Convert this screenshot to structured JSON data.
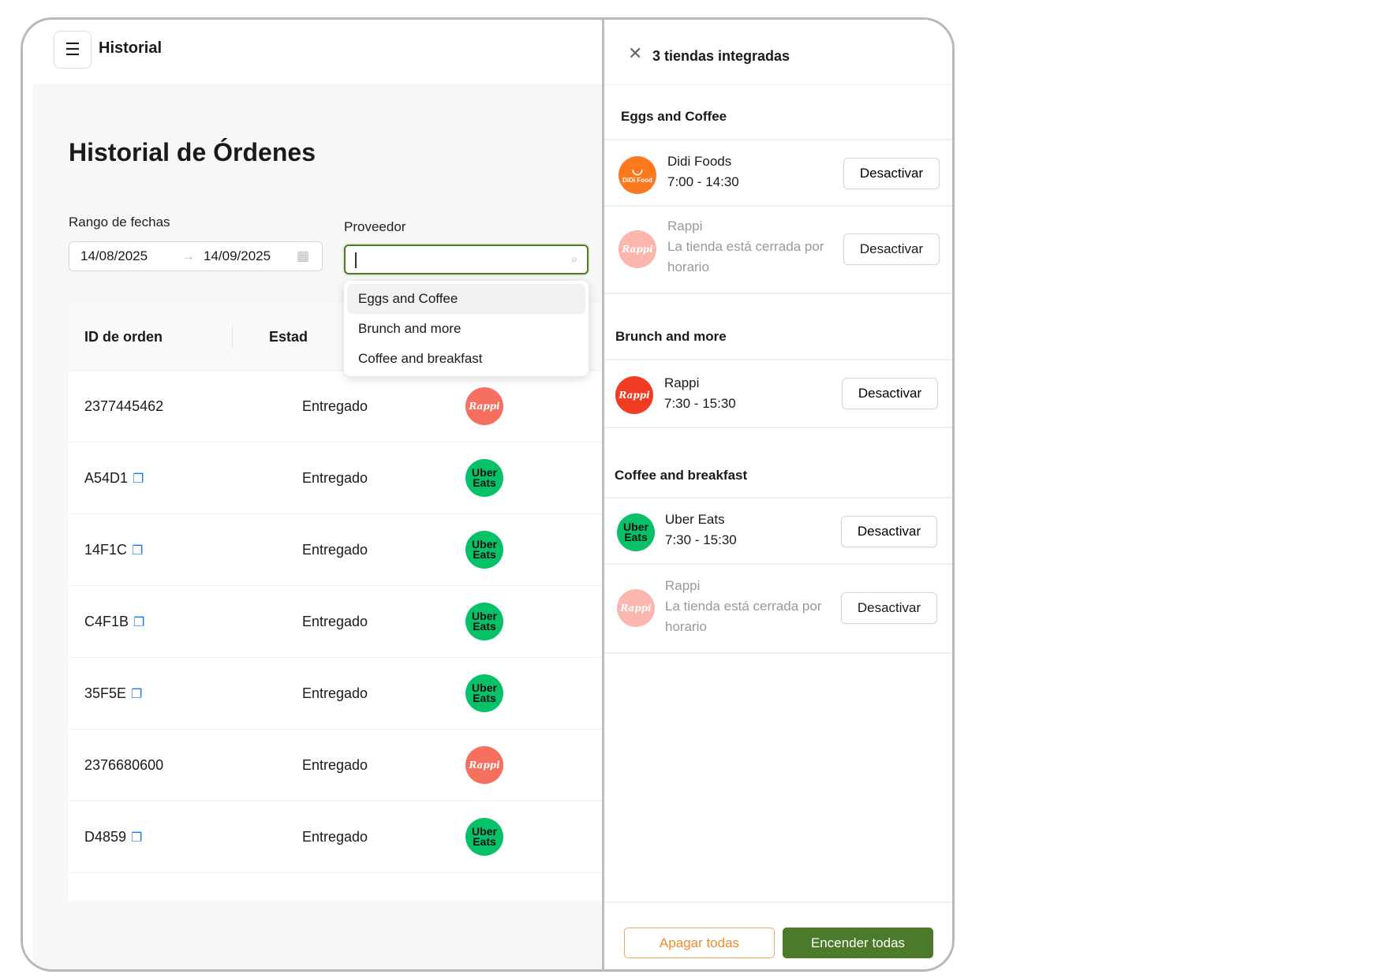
{
  "header": {
    "title": "Historial",
    "menu_icon": "hamburger-icon"
  },
  "page": {
    "title": "Historial de Órdenes"
  },
  "filters": {
    "date_label": "Rango de fechas",
    "date_from": "14/08/2025",
    "date_to": "14/09/2025",
    "arrow": "→",
    "provider_label": "Proveedor",
    "provider_value": "",
    "provider_options": [
      "Eggs and Coffee",
      "Brunch and more",
      "Coffee and breakfast"
    ]
  },
  "table": {
    "columns": [
      "ID de orden",
      "Estad"
    ],
    "rows": [
      {
        "id": "2377445462",
        "status": "Entregado",
        "provider": "Rappi",
        "copy": false
      },
      {
        "id": "A54D1",
        "status": "Entregado",
        "provider": "Uber Eats",
        "copy": true
      },
      {
        "id": "14F1C",
        "status": "Entregado",
        "provider": "Uber Eats",
        "copy": true
      },
      {
        "id": "C4F1B",
        "status": "Entregado",
        "provider": "Uber Eats",
        "copy": true
      },
      {
        "id": "35F5E",
        "status": "Entregado",
        "provider": "Uber Eats",
        "copy": true
      },
      {
        "id": "2376680600",
        "status": "Entregado",
        "provider": "Rappi",
        "copy": false
      },
      {
        "id": "D4859",
        "status": "Entregado",
        "provider": "Uber Eats",
        "copy": true
      }
    ]
  },
  "logos": {
    "uber": "Uber Eats",
    "rappi": "Rappi",
    "didi": "DiDi Food"
  },
  "panel": {
    "title": "3 tiendas integradas",
    "groups": [
      {
        "name": "Eggs and Coffee",
        "stores": [
          {
            "name": "Didi Foods",
            "detail": "7:00 - 14:30",
            "button": "Desactivar"
          },
          {
            "name": "Rappi",
            "detail": "La tienda está cerrada por horario",
            "button": "Desactivar"
          }
        ]
      },
      {
        "name": "Brunch and more",
        "stores": [
          {
            "name": "Rappi",
            "detail": "7:30 - 15:30",
            "button": "Desactivar"
          }
        ]
      },
      {
        "name": "Coffee and breakfast",
        "stores": [
          {
            "name": "Uber Eats",
            "detail": "7:30 - 15:30",
            "button": "Desactivar"
          },
          {
            "name": "Rappi",
            "detail": "La tienda está cerrada por horario",
            "button": "Desactivar"
          }
        ]
      }
    ],
    "off_all": "Apagar todas",
    "on_all": "Encender todas"
  },
  "colors": {
    "accent_green": "#4a7a2a",
    "orange": "#f08a2c",
    "uber": "#06c167",
    "rappi": "#f6705f",
    "didi": "#fb7a1f",
    "link": "#1677ff"
  }
}
